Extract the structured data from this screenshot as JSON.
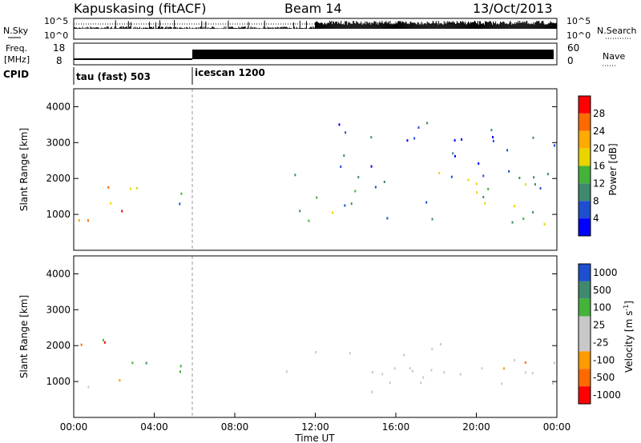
{
  "header": {
    "station": "Kapuskasing (fitACF)",
    "beam": "Beam 14",
    "date": "13/Oct/2013"
  },
  "panels": {
    "nsky_label": "N.Sky",
    "nsearch_label": "N.Search",
    "nsky_ticks": [
      "10^5",
      "10^0"
    ],
    "freq_label_line1": "Freq.",
    "freq_label_line2": "[MHz]",
    "freq_ticks": [
      "18",
      "8"
    ],
    "nave_label": "Nave",
    "nave_ticks": [
      "60",
      "0"
    ],
    "cpid_label": "CPID",
    "cpid_modes": [
      "tau (fast) 503",
      "icescan 1200"
    ]
  },
  "chart_data": [
    {
      "type": "heatmap",
      "name": "power-panel",
      "ylabel": "Slant Range [km]",
      "xlabel": "",
      "x_range_hours": [
        0,
        24
      ],
      "ylim": [
        0,
        4500
      ],
      "yticks": [
        "4000",
        "3000",
        "2000",
        "1000"
      ],
      "colorbar_label": "Power [dB]",
      "colorbar_ticks": [
        "28",
        "24",
        "20",
        "16",
        "12",
        "8",
        "4"
      ],
      "colorbar_colors": [
        "#ff0000",
        "#ff6a00",
        "#ffaa00",
        "#e8d400",
        "#44b33a",
        "#3f8a6e",
        "#1e4fd0",
        "#0000ff"
      ],
      "regions": [
        {
          "t0": 0.2,
          "t1": 2.4,
          "r0": 800,
          "r1": 2400,
          "level": "high"
        },
        {
          "t0": 2.0,
          "t1": 5.8,
          "r0": 1300,
          "r1": 2000,
          "level": "mid"
        },
        {
          "t0": 10.5,
          "t1": 24.0,
          "r0": 700,
          "r1": 2300,
          "level": "mid"
        },
        {
          "t0": 13.0,
          "t1": 24.0,
          "r0": 2000,
          "r1": 3600,
          "level": "low"
        }
      ]
    },
    {
      "type": "heatmap",
      "name": "velocity-panel",
      "ylabel": "Slant Range [km]",
      "xlabel": "Time UT",
      "x_range_hours": [
        0,
        24
      ],
      "ylim": [
        0,
        4500
      ],
      "yticks": [
        "4000",
        "3000",
        "2000",
        "1000"
      ],
      "xticks": [
        "00:00",
        "04:00",
        "08:00",
        "12:00",
        "16:00",
        "20:00",
        "00:00"
      ],
      "colorbar_label": "Velocity [m s^-1]",
      "colorbar_ticks": [
        "1000",
        "500",
        "100",
        "25",
        "-25",
        "-100",
        "-500",
        "-1000"
      ],
      "colorbar_colors": [
        "#1e4fd0",
        "#3f8a6e",
        "#44b33a",
        "#c8c8c8",
        "#c8c8c8",
        "#ff9a00",
        "#ff6a00",
        "#ff0000"
      ],
      "regions": [
        {
          "t0": 0.2,
          "t1": 2.6,
          "r0": 800,
          "r1": 2200,
          "level": "mixed"
        },
        {
          "t0": 2.0,
          "t1": 5.8,
          "r0": 1200,
          "r1": 1900,
          "level": "green"
        },
        {
          "t0": 10.5,
          "t1": 24.0,
          "r0": 700,
          "r1": 2100,
          "level": "grey"
        }
      ]
    }
  ]
}
